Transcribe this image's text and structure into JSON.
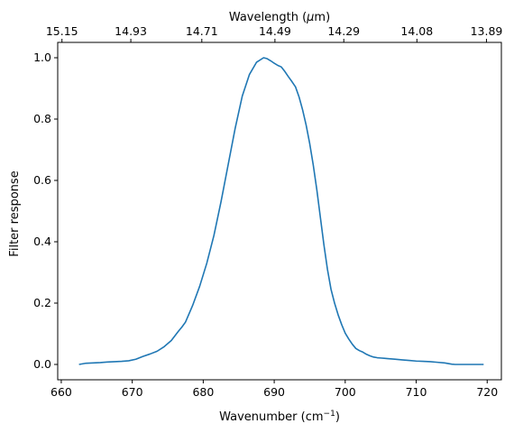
{
  "chart_data": {
    "type": "line",
    "xlabel": "Wavenumber (cm",
    "xlabel_sup": "−1",
    "xlabel_close": ")",
    "ylabel": "Filter response",
    "top_xlabel": "Wavelength (",
    "top_xlabel_unit": "μ",
    "top_xlabel_close": "m)",
    "xlim": [
      659.5,
      722.0
    ],
    "ylim": [
      -0.05,
      1.05
    ],
    "x_ticks": [
      660,
      670,
      680,
      690,
      700,
      710,
      720
    ],
    "x_tick_labels": [
      "660",
      "670",
      "680",
      "690",
      "700",
      "710",
      "720"
    ],
    "y_ticks": [
      0.0,
      0.2,
      0.4,
      0.6,
      0.8,
      1.0
    ],
    "y_tick_labels": [
      "0.0",
      "0.2",
      "0.4",
      "0.6",
      "0.8",
      "1.0"
    ],
    "top_ticks": [
      {
        "wavenumber": 660.1,
        "label": "15.15"
      },
      {
        "wavenumber": 669.8,
        "label": "14.93"
      },
      {
        "wavenumber": 679.8,
        "label": "14.71"
      },
      {
        "wavenumber": 690.1,
        "label": "14.49"
      },
      {
        "wavenumber": 699.8,
        "label": "14.29"
      },
      {
        "wavenumber": 710.1,
        "label": "14.08"
      },
      {
        "wavenumber": 719.9,
        "label": "13.89"
      }
    ],
    "grid": false,
    "color": "#1f77b4",
    "series": [
      {
        "x": [
          662.5,
          663.5,
          664.5,
          665.5,
          666.5,
          667.5,
          668.5,
          669.5,
          670.5,
          671.5,
          672.5,
          673.5,
          674.5,
          675.5,
          676.5,
          677.0,
          677.5,
          678.5,
          679.5,
          680.5,
          681.5,
          682.5,
          683.5,
          684.5,
          685.5,
          686.5,
          687.5,
          688.5,
          689.0,
          689.5,
          690.0,
          690.5,
          691.0,
          691.5,
          692.0,
          692.5,
          693.0,
          693.5,
          694.0,
          694.5,
          695.0,
          695.5,
          696.0,
          696.5,
          697.0,
          697.5,
          698.0,
          698.5,
          699.0,
          699.5,
          700.0,
          700.5,
          701.0,
          701.5,
          702.0,
          702.5,
          703.0,
          703.5,
          704.0,
          704.5,
          705.0,
          705.5,
          706.0,
          707.0,
          708.0,
          709.0,
          710.0,
          711.0,
          712.0,
          713.0,
          714.0,
          715.0,
          715.5,
          716.0,
          717.0,
          718.0,
          719.5
        ],
        "y": [
          0.0,
          0.004,
          0.005,
          0.006,
          0.008,
          0.009,
          0.01,
          0.012,
          0.017,
          0.026,
          0.034,
          0.043,
          0.058,
          0.078,
          0.108,
          0.122,
          0.138,
          0.192,
          0.255,
          0.33,
          0.42,
          0.53,
          0.65,
          0.77,
          0.875,
          0.945,
          0.985,
          1.0,
          0.997,
          0.99,
          0.982,
          0.975,
          0.97,
          0.955,
          0.938,
          0.922,
          0.905,
          0.872,
          0.83,
          0.78,
          0.72,
          0.65,
          0.57,
          0.48,
          0.39,
          0.31,
          0.245,
          0.2,
          0.162,
          0.13,
          0.102,
          0.083,
          0.066,
          0.052,
          0.045,
          0.04,
          0.033,
          0.028,
          0.024,
          0.022,
          0.021,
          0.02,
          0.019,
          0.017,
          0.015,
          0.013,
          0.011,
          0.01,
          0.009,
          0.007,
          0.005,
          0.001,
          0.0,
          0.0,
          0.0,
          0.0,
          0.0
        ]
      }
    ]
  }
}
